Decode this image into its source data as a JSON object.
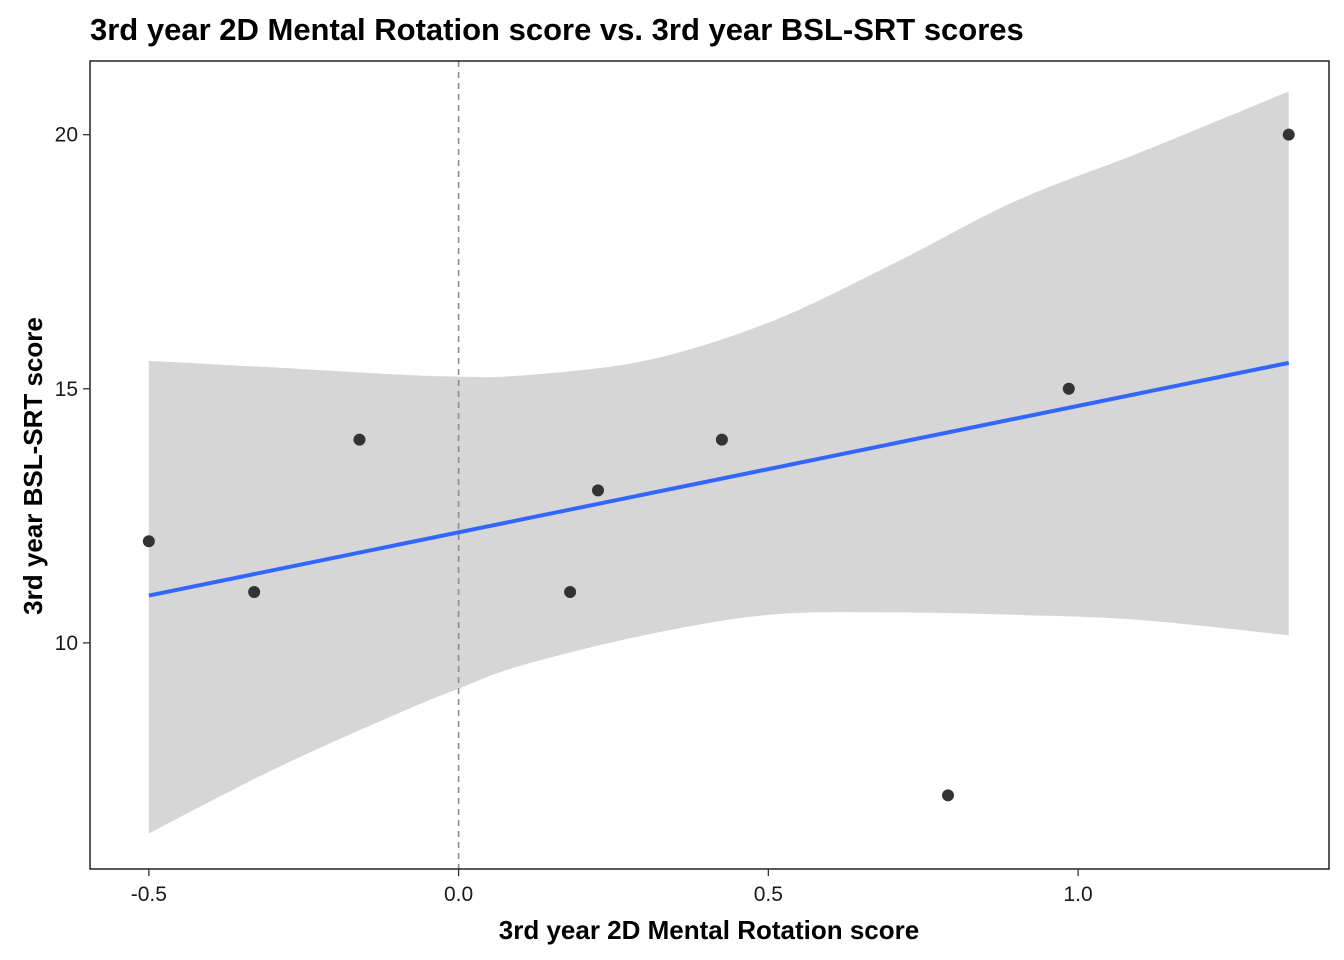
{
  "chart_data": {
    "type": "scatter",
    "title": "3rd year 2D Mental Rotation score vs. 3rd year BSL-SRT scores",
    "xlabel": "3rd year 2D Mental Rotation score",
    "ylabel": "3rd year BSL-SRT score",
    "xlim": [
      -0.595,
      1.405
    ],
    "ylim": [
      5.55,
      21.45
    ],
    "x_ticks": [
      -0.5,
      0.0,
      0.5,
      1.0
    ],
    "x_tick_labels": [
      "-0.5",
      "0.0",
      "0.5",
      "1.0"
    ],
    "y_ticks": [
      10,
      15,
      20
    ],
    "y_tick_labels": [
      "10",
      "15",
      "20"
    ],
    "grid": false,
    "reference_line": {
      "x": 0.0,
      "style": "dashed",
      "color": "#8c8c8c"
    },
    "points": [
      {
        "x": -0.5,
        "y": 12
      },
      {
        "x": -0.33,
        "y": 11
      },
      {
        "x": -0.16,
        "y": 14
      },
      {
        "x": 0.18,
        "y": 11
      },
      {
        "x": 0.225,
        "y": 13
      },
      {
        "x": 0.425,
        "y": 14
      },
      {
        "x": 0.79,
        "y": 7
      },
      {
        "x": 0.985,
        "y": 15
      },
      {
        "x": 1.34,
        "y": 20
      }
    ],
    "fit_line": {
      "method": "linear",
      "x": [
        -0.5,
        1.34
      ],
      "y": [
        10.93,
        15.51
      ],
      "color": "#3366ff"
    },
    "confidence_band": {
      "color": "#d6d6d6",
      "x": [
        -0.5,
        -0.3,
        -0.1,
        0.0,
        0.1,
        0.3,
        0.5,
        0.7,
        0.9,
        1.1,
        1.34
      ],
      "upper": [
        15.55,
        15.42,
        15.28,
        15.24,
        15.26,
        15.55,
        16.3,
        17.45,
        18.7,
        19.65,
        20.85
      ],
      "lower": [
        6.25,
        7.5,
        8.6,
        9.1,
        9.55,
        10.15,
        10.55,
        10.6,
        10.55,
        10.45,
        10.15
      ]
    },
    "point_color": "#333333",
    "panel_border": "#000000"
  }
}
